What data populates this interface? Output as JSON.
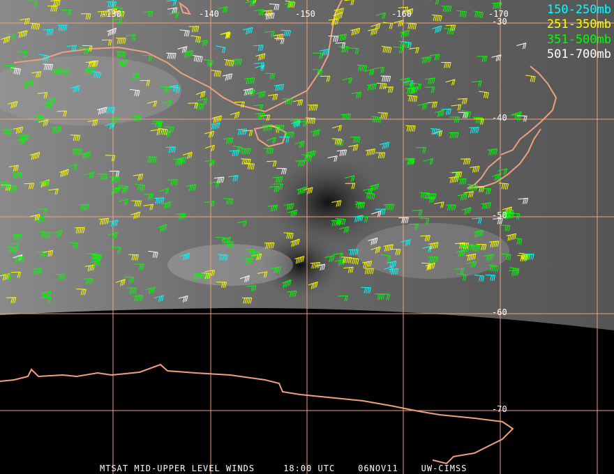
{
  "title_footer": {
    "product": "MTSAT MID-UPPER LEVEL WINDS",
    "time": "18:00 UTC",
    "date": "06NOV11",
    "source": "UW-CIMSS"
  },
  "legend": [
    {
      "label": "150-250mb",
      "color": "#00ffff"
    },
    {
      "label": "251-350mb",
      "color": "#ffff00"
    },
    {
      "label": "351-500mb",
      "color": "#00ff00"
    },
    {
      "label": "501-700mb",
      "color": "#ffffff"
    }
  ],
  "longitude_labels": [
    "-130",
    "-140",
    "-150",
    "-160",
    "-170"
  ],
  "latitude_labels": [
    "-30",
    "-40",
    "-50",
    "-60",
    "-70"
  ],
  "colors": {
    "grid": "#f0a080",
    "coastline": "#f0a080",
    "background": "#000000"
  }
}
